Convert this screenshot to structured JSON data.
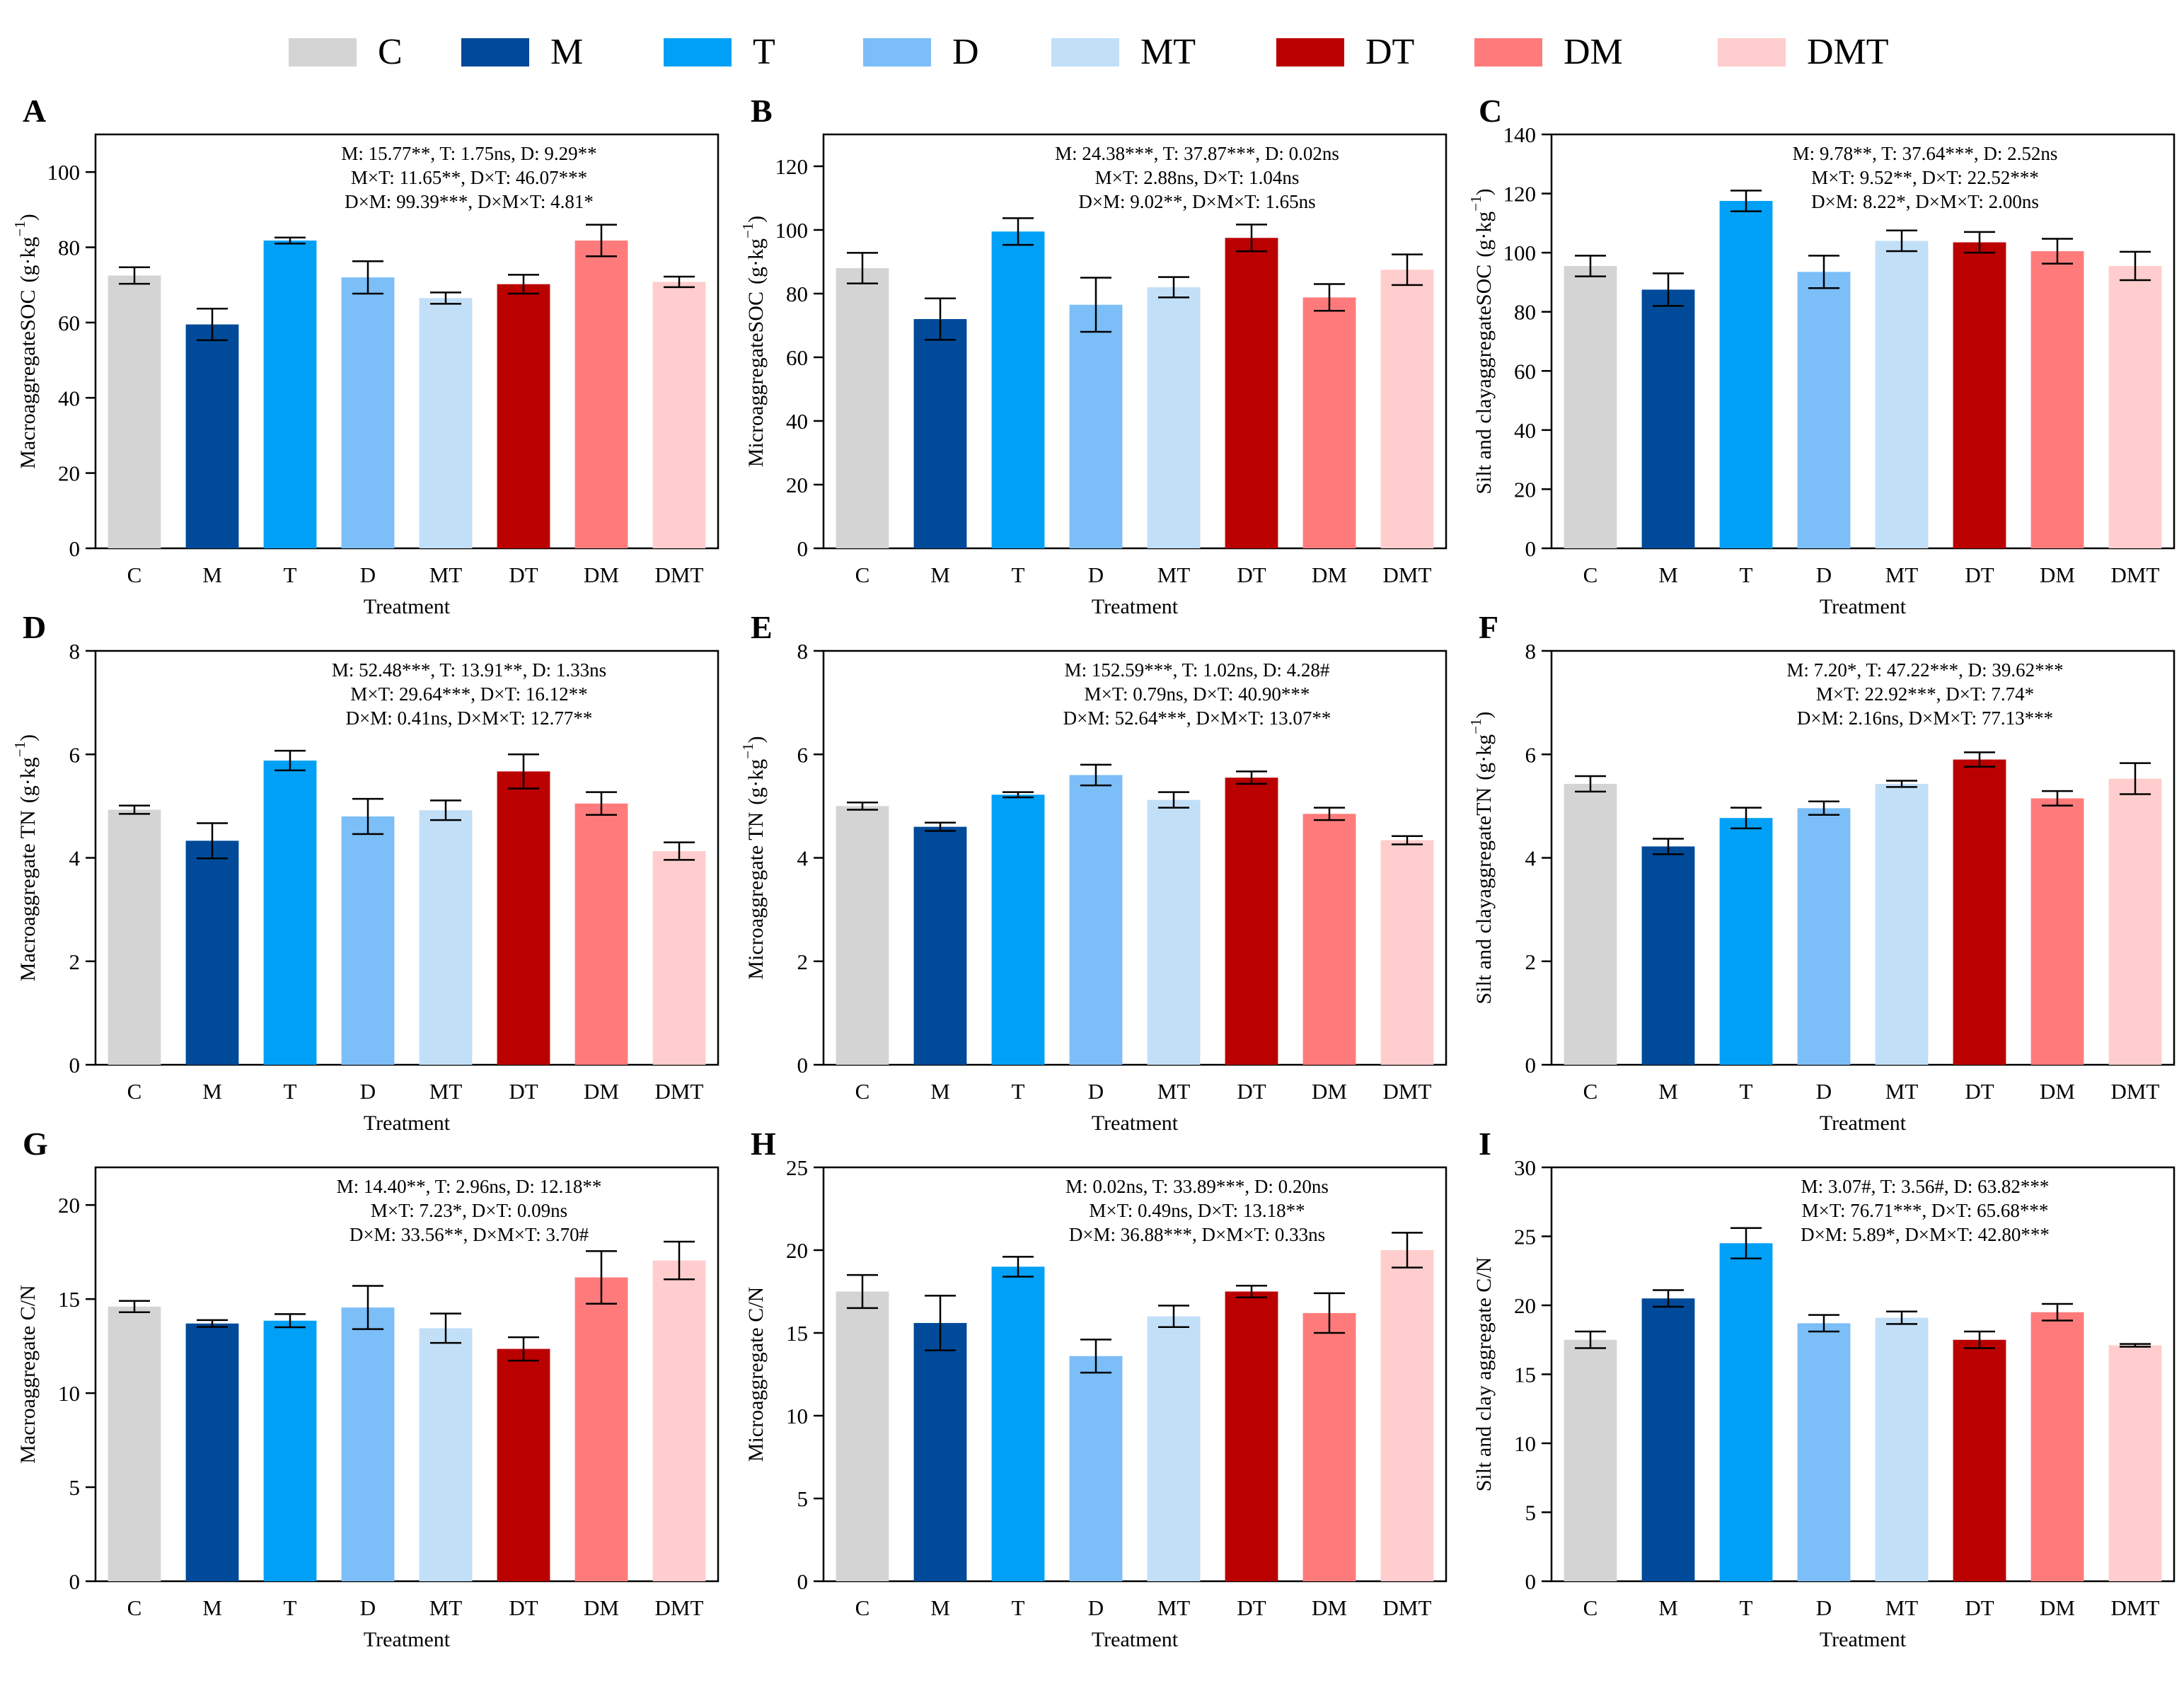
{
  "legend": [
    {
      "label": "C",
      "color": "#d4d4d4"
    },
    {
      "label": "M",
      "color": "#004a99"
    },
    {
      "label": "T",
      "color": "#00a0f6"
    },
    {
      "label": "D",
      "color": "#7cbef8"
    },
    {
      "label": "MT",
      "color": "#c2dff8"
    },
    {
      "label": "DT",
      "color": "#bb0000"
    },
    {
      "label": "DM",
      "color": "#ff7b7b"
    },
    {
      "label": "DMT",
      "color": "#ffcdcd"
    }
  ],
  "chart_data": [
    {
      "panel": "A",
      "type": "bar",
      "categories": [
        "C",
        "M",
        "T",
        "D",
        "MT",
        "DT",
        "DM",
        "DMT"
      ],
      "values": [
        72.5,
        59.5,
        81.8,
        72,
        66.5,
        70.2,
        81.8,
        70.8
      ],
      "errors": [
        2.2,
        4.2,
        0.8,
        4.3,
        1.5,
        2.5,
        4.2,
        1.4
      ],
      "xlabel": "Treatment",
      "ylabel_main": "MacroaggregateSOC",
      "ylabel_unit": "(g·kg",
      "ylabel_sup": "−1",
      "ylabel_close": ")",
      "ylim": [
        0,
        110
      ],
      "yticks": [
        0,
        20,
        40,
        60,
        80,
        100
      ],
      "stats": [
        "M: 15.77**,  T: 1.75ns,  D: 9.29**",
        "M×T: 11.65**,  D×T: 46.07***",
        "D×M: 99.39***,  D×M×T: 4.81*"
      ]
    },
    {
      "panel": "B",
      "type": "bar",
      "categories": [
        "C",
        "M",
        "T",
        "D",
        "MT",
        "DT",
        "DM",
        "DMT"
      ],
      "values": [
        88,
        72,
        99.5,
        76.5,
        82,
        97.5,
        78.8,
        87.5
      ],
      "errors": [
        4.8,
        6.5,
        4.2,
        8.5,
        3.2,
        4.2,
        4.2,
        4.8
      ],
      "xlabel": "Treatment",
      "ylabel_main": "MicroaggregateSOC",
      "ylabel_unit": "(g·kg",
      "ylabel_sup": "−1",
      "ylabel_close": ")",
      "ylim": [
        0,
        130
      ],
      "yticks": [
        0,
        20,
        40,
        60,
        80,
        100,
        120
      ],
      "stats": [
        "M: 24.38***,  T: 37.87***,  D: 0.02ns",
        "M×T: 2.88ns,  D×T: 1.04ns",
        "D×M: 9.02**,  D×M×T: 1.65ns"
      ]
    },
    {
      "panel": "C",
      "type": "bar",
      "categories": [
        "C",
        "M",
        "T",
        "D",
        "MT",
        "DT",
        "DM",
        "DMT"
      ],
      "values": [
        95.5,
        87.5,
        117.5,
        93.5,
        104,
        103.5,
        100.5,
        95.5
      ],
      "errors": [
        3.5,
        5.5,
        3.5,
        5.5,
        3.5,
        3.5,
        4.2,
        4.8
      ],
      "xlabel": "Treatment",
      "ylabel_main": "Silt and clayaggregateSOC",
      "ylabel_unit": "(g·kg",
      "ylabel_sup": "−1",
      "ylabel_close": ")",
      "ylim": [
        0,
        140
      ],
      "yticks": [
        0,
        20,
        40,
        60,
        80,
        100,
        120,
        140
      ],
      "stats": [
        "M: 9.78**,  T: 37.64***,  D: 2.52ns",
        "M×T: 9.52**,  D×T: 22.52***",
        "D×M: 8.22*,  D×M×T: 2.00ns"
      ]
    },
    {
      "panel": "D",
      "type": "bar",
      "categories": [
        "C",
        "M",
        "T",
        "D",
        "MT",
        "DT",
        "DM",
        "DMT"
      ],
      "values": [
        4.93,
        4.33,
        5.88,
        4.8,
        4.92,
        5.67,
        5.05,
        4.13
      ],
      "errors": [
        0.08,
        0.34,
        0.19,
        0.34,
        0.19,
        0.33,
        0.22,
        0.17
      ],
      "xlabel": "Treatment",
      "ylabel_main": "Macroaggregate TN",
      "ylabel_unit": "(g·kg",
      "ylabel_sup": "−1",
      "ylabel_close": ")",
      "ylim": [
        0,
        8
      ],
      "yticks": [
        0,
        2,
        4,
        6,
        8
      ],
      "stats": [
        "M: 52.48***,  T: 13.91**,  D: 1.33ns",
        "M×T: 29.64***,  D×T: 16.12**",
        "D×M: 0.41ns,  D×M×T: 12.77**"
      ]
    },
    {
      "panel": "E",
      "type": "bar",
      "categories": [
        "C",
        "M",
        "T",
        "D",
        "MT",
        "DT",
        "DM",
        "DMT"
      ],
      "values": [
        5.0,
        4.6,
        5.22,
        5.6,
        5.12,
        5.55,
        4.85,
        4.34
      ],
      "errors": [
        0.07,
        0.08,
        0.05,
        0.2,
        0.15,
        0.12,
        0.12,
        0.08
      ],
      "xlabel": "Treatment",
      "ylabel_main": "Microaggregate TN",
      "ylabel_unit": "(g·kg",
      "ylabel_sup": "−1",
      "ylabel_close": ")",
      "ylim": [
        0,
        8
      ],
      "yticks": [
        0,
        2,
        4,
        6,
        8
      ],
      "stats": [
        "M: 152.59***,  T: 1.02ns,  D: 4.28#",
        "M×T: 0.79ns,  D×T: 40.90***",
        "D×M: 52.64***,  D×M×T: 13.07**"
      ]
    },
    {
      "panel": "F",
      "type": "bar",
      "categories": [
        "C",
        "M",
        "T",
        "D",
        "MT",
        "DT",
        "DM",
        "DMT"
      ],
      "values": [
        5.43,
        4.22,
        4.77,
        4.96,
        5.43,
        5.9,
        5.15,
        5.53
      ],
      "errors": [
        0.15,
        0.15,
        0.2,
        0.13,
        0.06,
        0.14,
        0.14,
        0.3
      ],
      "xlabel": "Treatment",
      "ylabel_main": "Silt and clayaggregateTN",
      "ylabel_unit": "(g·kg",
      "ylabel_sup": "−1",
      "ylabel_close": ")",
      "ylim": [
        0,
        8
      ],
      "yticks": [
        0,
        2,
        4,
        6,
        8
      ],
      "stats": [
        "M: 7.20*,  T: 47.22***,  D: 39.62***",
        "M×T: 22.92***,  D×T: 7.74*",
        "D×M: 2.16ns,  D×M×T: 77.13***"
      ]
    },
    {
      "panel": "G",
      "type": "bar",
      "categories": [
        "C",
        "M",
        "T",
        "D",
        "MT",
        "DT",
        "DM",
        "DMT"
      ],
      "values": [
        14.6,
        13.7,
        13.85,
        14.55,
        13.45,
        12.35,
        16.15,
        17.05
      ],
      "errors": [
        0.3,
        0.18,
        0.35,
        1.15,
        0.78,
        0.62,
        1.4,
        1.0
      ],
      "xlabel": "Treatment",
      "ylabel_main": "Macroaggregate C/N",
      "ylim": [
        0,
        22
      ],
      "yticks": [
        0,
        5,
        10,
        15,
        20
      ],
      "stats": [
        "M: 14.40**,  T: 2.96ns,  D: 12.18**",
        "M×T: 7.23*,  D×T: 0.09ns",
        "D×M: 33.56**,  D×M×T: 3.70#"
      ]
    },
    {
      "panel": "H",
      "type": "bar",
      "categories": [
        "C",
        "M",
        "T",
        "D",
        "MT",
        "DT",
        "DM",
        "DMT"
      ],
      "values": [
        17.5,
        15.6,
        19.0,
        13.6,
        16.0,
        17.5,
        16.2,
        20.0
      ],
      "errors": [
        1.0,
        1.65,
        0.6,
        1.0,
        0.65,
        0.35,
        1.2,
        1.05
      ],
      "xlabel": "Treatment",
      "ylabel_main": "Microaggregate C/N",
      "ylim": [
        0,
        25
      ],
      "yticks": [
        0,
        5,
        10,
        15,
        20,
        25
      ],
      "stats": [
        "M: 0.02ns,  T: 33.89***,  D: 0.20ns",
        "M×T: 0.49ns,  D×T: 13.18**",
        "D×M: 36.88***,  D×M×T: 0.33ns"
      ]
    },
    {
      "panel": "I",
      "type": "bar",
      "categories": [
        "C",
        "M",
        "T",
        "D",
        "MT",
        "DT",
        "DM",
        "DMT"
      ],
      "values": [
        17.5,
        20.5,
        24.5,
        18.7,
        19.1,
        17.5,
        19.5,
        17.1
      ],
      "errors": [
        0.6,
        0.6,
        1.1,
        0.6,
        0.45,
        0.6,
        0.6,
        0.1
      ],
      "xlabel": "Treatment",
      "ylabel_main": "Silt and clay aggregate C/N",
      "ylim": [
        0,
        30
      ],
      "yticks": [
        0,
        5,
        10,
        15,
        20,
        25,
        30
      ],
      "stats": [
        "M: 3.07#,  T: 3.56#,  D: 63.82***",
        "M×T: 76.71***,  D×T: 65.68***",
        "D×M: 5.89*,  D×M×T: 42.80***"
      ]
    }
  ]
}
